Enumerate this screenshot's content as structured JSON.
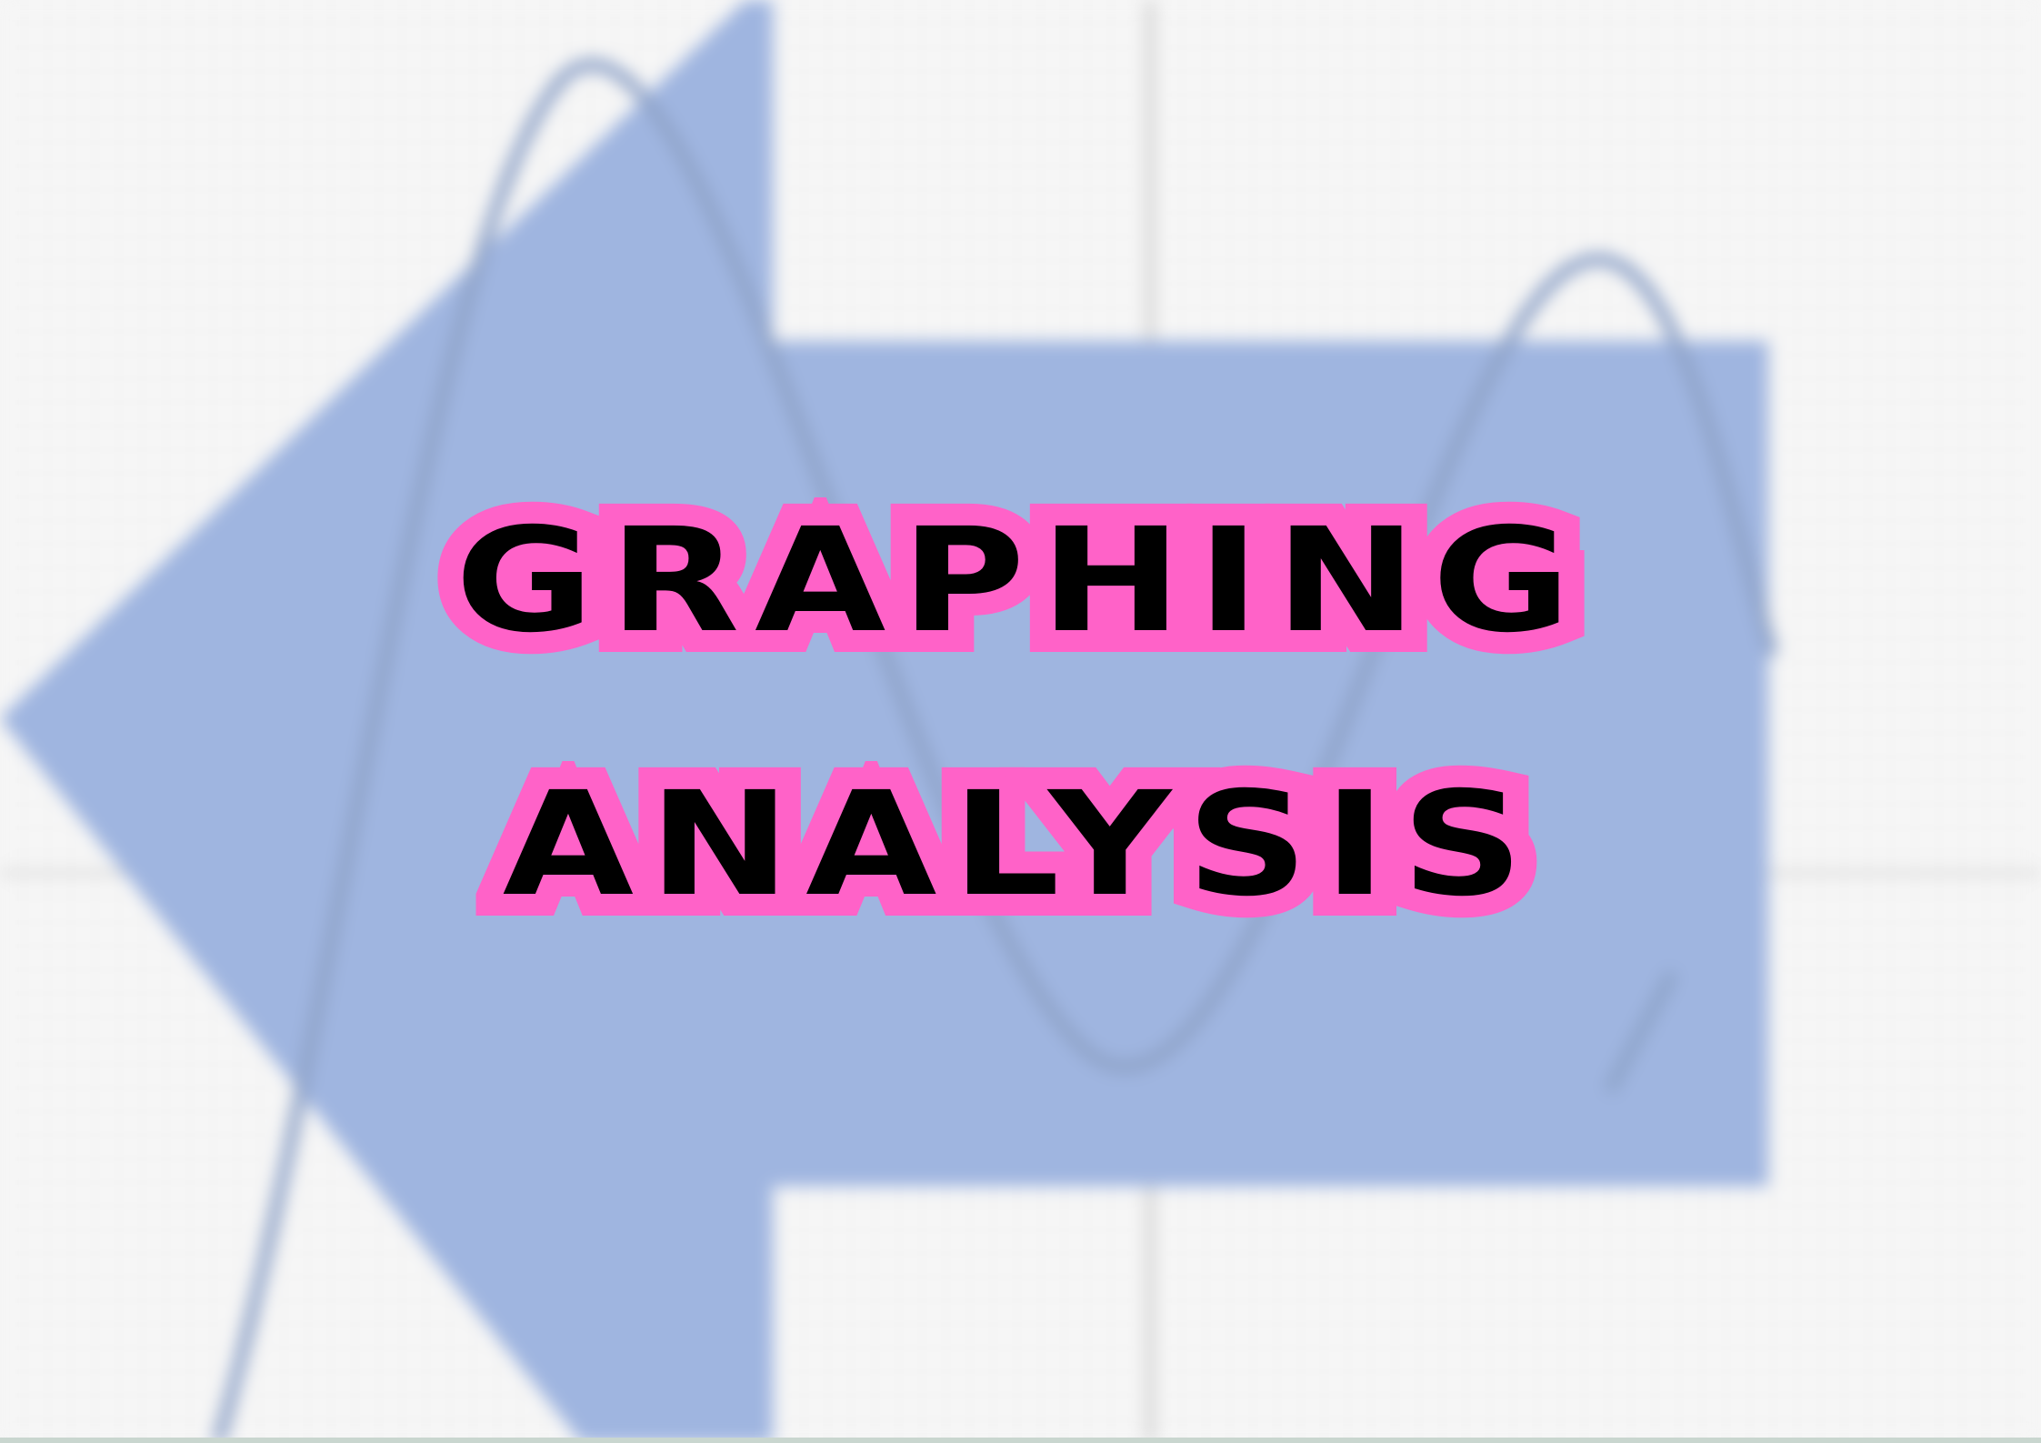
{
  "title": {
    "line1": "GRAPHING",
    "line2": "ANALYSIS"
  },
  "colors": {
    "background": "#f7f7f7",
    "grid": "#d9d9d9",
    "arrow_fill": "#9fb5e0",
    "curve": "#8fa3c8",
    "outline": "#ff62c8",
    "text": "#000000"
  },
  "decor": {
    "arrow_direction": "left",
    "grid": true,
    "curve": "wave"
  }
}
